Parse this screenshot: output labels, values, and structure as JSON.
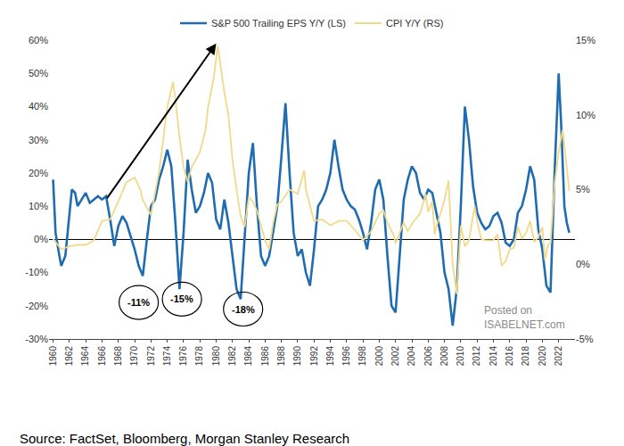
{
  "chart_data": {
    "type": "line",
    "legend": "top",
    "grid": false,
    "source": "Source: FactSet, Bloomberg, Morgan Stanley Research",
    "watermark": [
      "Posted on",
      "ISABELNET.com"
    ],
    "xlim": [
      1959.5,
      2024
    ],
    "xticks": [
      1960,
      1962,
      1964,
      1966,
      1968,
      1970,
      1972,
      1974,
      1976,
      1978,
      1980,
      1982,
      1984,
      1986,
      1988,
      1990,
      1992,
      1994,
      1996,
      1998,
      2000,
      2002,
      2004,
      2006,
      2008,
      2010,
      2012,
      2014,
      2016,
      2018,
      2020,
      2022
    ],
    "ylim": [
      -30,
      60
    ],
    "yticks": [
      {
        "value": -30,
        "label": "-30%"
      },
      {
        "value": -20,
        "label": "-20%"
      },
      {
        "value": -10,
        "label": "-10%"
      },
      {
        "value": 0,
        "label": "0%"
      },
      {
        "value": 10,
        "label": "10%"
      },
      {
        "value": 20,
        "label": "20%"
      },
      {
        "value": 30,
        "label": "30%"
      },
      {
        "value": 40,
        "label": "40%"
      },
      {
        "value": 50,
        "label": "50%"
      },
      {
        "value": 60,
        "label": "60%"
      }
    ],
    "y2lim": [
      -5,
      15
    ],
    "y2ticks": [
      {
        "value": -5,
        "label": "-5%"
      },
      {
        "value": 0,
        "label": "0%"
      },
      {
        "value": 5,
        "label": "5%"
      },
      {
        "value": 10,
        "label": "10%"
      },
      {
        "value": 15,
        "label": "15%"
      }
    ],
    "annotations": [
      {
        "text": "-11%",
        "x": 1970.5,
        "y": -19
      },
      {
        "text": "-15%",
        "x": 1975.8,
        "y": -18
      },
      {
        "text": "-18%",
        "x": 1983.3,
        "y": -21
      }
    ],
    "arrow": {
      "x0": 1966.5,
      "y0": 12,
      "x1": 1980,
      "y1": 59
    },
    "series": [
      {
        "name": "S&P 500 Trailing EPS Y/Y (LS)",
        "color": "#1f6db0",
        "axis": "y",
        "x": [
          1960,
          1960.3,
          1960.7,
          1961,
          1961.5,
          1962,
          1962.3,
          1962.7,
          1963,
          1963.5,
          1964,
          1964.5,
          1965,
          1965.5,
          1966,
          1966.5,
          1967,
          1967.5,
          1968,
          1968.5,
          1969,
          1969.5,
          1970,
          1970.5,
          1971,
          1971.5,
          1972,
          1972.5,
          1973,
          1973.5,
          1974,
          1974.5,
          1975,
          1975.5,
          1976,
          1976.5,
          1977,
          1977.5,
          1978,
          1978.5,
          1979,
          1979.5,
          1980,
          1980.5,
          1981,
          1981.5,
          1982,
          1982.5,
          1983,
          1983.5,
          1984,
          1984.5,
          1985,
          1985.5,
          1986,
          1986.5,
          1987,
          1987.5,
          1988,
          1988.5,
          1989,
          1989.5,
          1990,
          1990.5,
          1991,
          1991.5,
          1992,
          1992.5,
          1993,
          1993.5,
          1994,
          1994.5,
          1995,
          1995.5,
          1996,
          1996.5,
          1997,
          1997.5,
          1998,
          1998.5,
          1999,
          1999.5,
          2000,
          2000.5,
          2001,
          2001.5,
          2002,
          2002.5,
          2003,
          2003.5,
          2004,
          2004.5,
          2005,
          2005.5,
          2006,
          2006.5,
          2007,
          2007.5,
          2008,
          2008.5,
          2009,
          2009.5,
          2010,
          2010.5,
          2011,
          2011.5,
          2012,
          2012.5,
          2013,
          2013.5,
          2014,
          2014.5,
          2015,
          2015.5,
          2016,
          2016.5,
          2017,
          2017.5,
          2018,
          2018.5,
          2019,
          2019.5,
          2020,
          2020.5,
          2021,
          2021.5,
          2022,
          2022.3,
          2022.7,
          2023,
          2023.3
        ],
        "values": [
          18,
          2,
          -4,
          -8,
          -5,
          8,
          15,
          14,
          10,
          12,
          14,
          11,
          12,
          13,
          12,
          13,
          6,
          -2,
          4,
          7,
          5,
          1,
          -3,
          -8,
          -11,
          0,
          10,
          12,
          18,
          22,
          27,
          22,
          5,
          -15,
          2,
          24,
          15,
          8,
          10,
          14,
          20,
          17,
          6,
          3,
          12,
          5,
          -5,
          -15,
          -18,
          2,
          20,
          29,
          10,
          -5,
          -8,
          -5,
          2,
          10,
          25,
          41,
          20,
          2,
          -5,
          -3,
          -10,
          -14,
          -3,
          10,
          12,
          15,
          20,
          30,
          22,
          15,
          12,
          10,
          9,
          6,
          2,
          -3,
          5,
          15,
          18,
          12,
          -5,
          -20,
          -22,
          -5,
          12,
          18,
          22,
          20,
          14,
          12,
          15,
          14,
          8,
          2,
          -10,
          -15,
          -26,
          -15,
          10,
          40,
          30,
          16,
          8,
          5,
          3,
          4,
          7,
          8,
          5,
          -1,
          -2,
          0,
          8,
          10,
          15,
          22,
          18,
          3,
          -3,
          -14,
          -16,
          20,
          50,
          35,
          10,
          5,
          2
        ]
      },
      {
        "name": "CPI Y/Y (RS)",
        "color": "#f0d98a",
        "axis": "y2",
        "x": [
          1960,
          1961,
          1962,
          1963,
          1964,
          1965,
          1966,
          1967,
          1968,
          1969,
          1970,
          1970.7,
          1971,
          1972,
          1973,
          1973.7,
          1974,
          1974.7,
          1975,
          1975.5,
          1976,
          1976.5,
          1977,
          1978,
          1978.7,
          1979,
          1979.7,
          1980.2,
          1980.7,
          1981,
          1981.5,
          1982,
          1982.5,
          1983,
          1983.5,
          1984,
          1984.5,
          1985,
          1986,
          1986.5,
          1987,
          1987.5,
          1988,
          1989,
          1990,
          1990.8,
          1991,
          1991.5,
          1992,
          1993,
          1994,
          1995,
          1996,
          1997,
          1998,
          1999,
          2000,
          2000.5,
          2001,
          2001.8,
          2002,
          2003,
          2003.5,
          2004,
          2005,
          2005.7,
          2006,
          2006.5,
          2006.8,
          2007,
          2007.9,
          2008.5,
          2009,
          2009.5,
          2010,
          2010.5,
          2011,
          2011.7,
          2012,
          2012.5,
          2013,
          2014,
          2014.5,
          2015,
          2015.5,
          2016,
          2016.5,
          2017,
          2017.5,
          2018,
          2018.5,
          2019,
          2019.5,
          2020,
          2020.3,
          2020.7,
          2021,
          2021.5,
          2022,
          2022.5,
          2023,
          2023.3
        ],
        "values": [
          1.7,
          1.0,
          1.2,
          1.3,
          1.3,
          1.6,
          2.9,
          3.0,
          4.2,
          5.5,
          5.8,
          5.0,
          4.3,
          3.3,
          6.2,
          9,
          10.5,
          12.2,
          11,
          8.5,
          6.5,
          5.5,
          6.5,
          7.5,
          9,
          10.5,
          12.5,
          14.6,
          12.8,
          11.5,
          10,
          7,
          5,
          3.2,
          2.5,
          4.5,
          4.2,
          3.6,
          1.6,
          1.0,
          2.8,
          4.0,
          4.2,
          5.0,
          4.7,
          6.3,
          5.0,
          4.0,
          2.9,
          3.0,
          2.6,
          2.9,
          2.9,
          2.3,
          1.6,
          2.2,
          3.4,
          3.6,
          2.8,
          1.9,
          1.4,
          2.8,
          2.2,
          2.7,
          3.4,
          4.7,
          3.5,
          4.2,
          2.0,
          2.5,
          4.1,
          5.6,
          0.0,
          -2.0,
          2.6,
          1.2,
          1.6,
          3.9,
          2.9,
          1.7,
          1.6,
          1.6,
          2.0,
          -0.1,
          0.2,
          1.0,
          1.1,
          2.5,
          1.7,
          2.1,
          2.9,
          1.5,
          1.8,
          2.5,
          0.3,
          1.3,
          1.4,
          5.4,
          7.5,
          9.0,
          6.4,
          4.9
        ]
      }
    ]
  }
}
